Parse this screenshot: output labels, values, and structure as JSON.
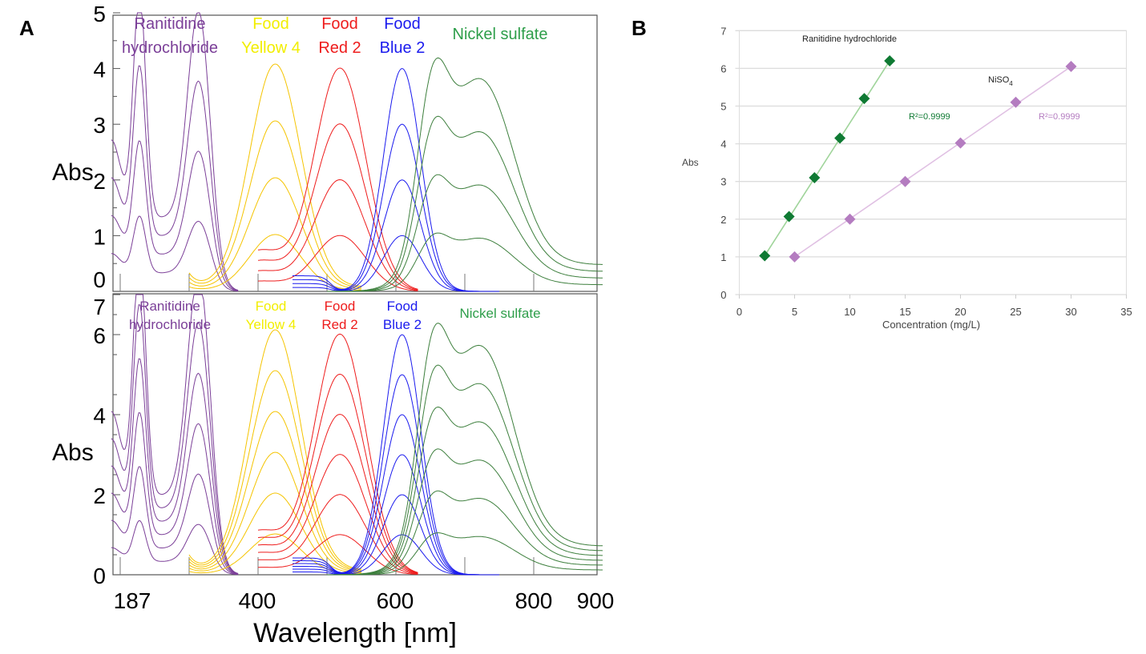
{
  "panels": {
    "a_label": "A",
    "b_label": "B"
  },
  "colors": {
    "ranitidine": "#7b3f98",
    "yellow": "#f2e600",
    "yellow_line": "#f5c400",
    "red": "#ee1c1c",
    "blue": "#1a1aee",
    "nickel": "#2e9e4a",
    "nickel_line": "#3d7f3d",
    "b_green": "#0f7a33",
    "b_purple": "#b47cc0"
  },
  "chart_data": [
    {
      "type": "line",
      "panel": "A-top",
      "ylabel": "Abs",
      "ylim": [
        0,
        5
      ],
      "yticks": [
        "0",
        "1",
        "2",
        "3",
        "4",
        "5"
      ],
      "xlim": [
        187,
        900
      ],
      "compound_labels": [
        {
          "lines": [
            "Ranitidine",
            "hydrochloride"
          ],
          "color_key": "ranitidine"
        },
        {
          "lines": [
            "Food",
            "Yellow 4"
          ],
          "color_key": "yellow"
        },
        {
          "lines": [
            "Food",
            "Red 2"
          ],
          "color_key": "red"
        },
        {
          "lines": [
            "Food",
            "Blue 2"
          ],
          "color_key": "blue"
        },
        {
          "lines": [
            "Nickel sulfate"
          ],
          "color_key": "nickel"
        }
      ],
      "peak_absorbances": [
        1,
        2,
        3,
        4
      ],
      "peaks_nm": {
        "ranitidine": [
          228,
          314
        ],
        "yellow": [
          425
        ],
        "red": [
          519
        ],
        "blue": [
          609
        ],
        "nickel": [
          656,
          719
        ]
      }
    },
    {
      "type": "line",
      "panel": "A-bottom",
      "ylabel": "Abs",
      "ylim": [
        0,
        7
      ],
      "yticks": [
        "0",
        "2",
        "4",
        "6",
        "7"
      ],
      "xlim": [
        187,
        900
      ],
      "xticks": [
        "187",
        "400",
        "600",
        "800",
        "900"
      ],
      "xlabel": "Wavelength [nm]",
      "compound_labels": [
        {
          "lines": [
            "Ranitidine",
            "hydrochloride"
          ],
          "color_key": "ranitidine"
        },
        {
          "lines": [
            "Food",
            "Yellow 4"
          ],
          "color_key": "yellow"
        },
        {
          "lines": [
            "Food",
            "Red 2"
          ],
          "color_key": "red"
        },
        {
          "lines": [
            "Food",
            "Blue 2"
          ],
          "color_key": "blue"
        },
        {
          "lines": [
            "Nickel sulfate"
          ],
          "color_key": "nickel"
        }
      ],
      "peak_absorbances": [
        1,
        2,
        3,
        4,
        5,
        6
      ],
      "peaks_nm": {
        "ranitidine": [
          228,
          314
        ],
        "yellow": [
          425
        ],
        "red": [
          519
        ],
        "blue": [
          609
        ],
        "nickel": [
          656,
          719
        ]
      }
    },
    {
      "type": "scatter",
      "panel": "B",
      "xlabel": "Concentration (mg/L)",
      "ylabel": "Abs",
      "xlim": [
        0,
        35
      ],
      "ylim": [
        0,
        7
      ],
      "xticks": [
        "0",
        "5",
        "10",
        "15",
        "20",
        "25",
        "30",
        "35"
      ],
      "yticks": [
        "0",
        "1",
        "2",
        "3",
        "4",
        "5",
        "6",
        "7"
      ],
      "grid": "horizontal",
      "series": [
        {
          "name": "Ranitidine hydrochloride",
          "r2": "R²=0.9999",
          "color_key": "b_green",
          "x": [
            2.3,
            4.5,
            6.8,
            9.1,
            11.3,
            13.6
          ],
          "y": [
            1.03,
            2.07,
            3.1,
            4.15,
            5.2,
            6.2
          ]
        },
        {
          "name": "NiSO",
          "name_sub": "4",
          "r2": "R²=0.9999",
          "color_key": "b_purple",
          "x": [
            5,
            10,
            15,
            20,
            25,
            30
          ],
          "y": [
            1.0,
            2.0,
            3.0,
            4.02,
            5.1,
            6.05
          ]
        }
      ]
    }
  ]
}
